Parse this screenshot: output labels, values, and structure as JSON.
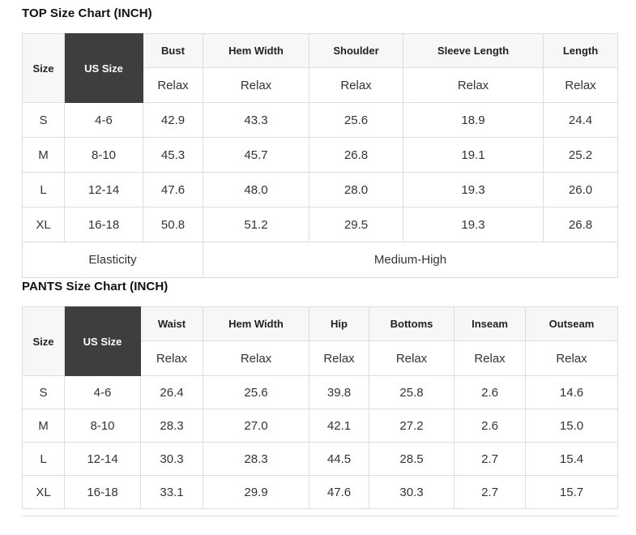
{
  "colors": {
    "dark_header_bg": "#3e3e3e",
    "dark_header_text": "#ffffff",
    "header_bg": "#f7f7f7",
    "border": "#dddddd",
    "text": "#333333",
    "heading_text": "#111111"
  },
  "top_chart": {
    "title": "TOP Size Chart (INCH)",
    "header": {
      "size": "Size",
      "us_size": "US Size",
      "columns": [
        "Bust",
        "Hem Width",
        "Shoulder",
        "Sleeve Length",
        "Length"
      ],
      "fit": "Relax"
    },
    "rows": [
      {
        "size": "S",
        "us_size": "4-6",
        "values": [
          "42.9",
          "43.3",
          "25.6",
          "18.9",
          "24.4"
        ]
      },
      {
        "size": "M",
        "us_size": "8-10",
        "values": [
          "45.3",
          "45.7",
          "26.8",
          "19.1",
          "25.2"
        ]
      },
      {
        "size": "L",
        "us_size": "12-14",
        "values": [
          "47.6",
          "48.0",
          "28.0",
          "19.3",
          "26.0"
        ]
      },
      {
        "size": "XL",
        "us_size": "16-18",
        "values": [
          "50.8",
          "51.2",
          "29.5",
          "19.3",
          "26.8"
        ]
      }
    ],
    "footer": {
      "label": "Elasticity",
      "value": "Medium-High"
    }
  },
  "pants_chart": {
    "title": "PANTS Size Chart (INCH)",
    "header": {
      "size": "Size",
      "us_size": "US Size",
      "columns": [
        "Waist",
        "Hem Width",
        "Hip",
        "Bottoms",
        "Inseam",
        "Outseam"
      ],
      "fit": "Relax"
    },
    "rows": [
      {
        "size": "S",
        "us_size": "4-6",
        "values": [
          "26.4",
          "25.6",
          "39.8",
          "25.8",
          "2.6",
          "14.6"
        ]
      },
      {
        "size": "M",
        "us_size": "8-10",
        "values": [
          "28.3",
          "27.0",
          "42.1",
          "27.2",
          "2.6",
          "15.0"
        ]
      },
      {
        "size": "L",
        "us_size": "12-14",
        "values": [
          "30.3",
          "28.3",
          "44.5",
          "28.5",
          "2.7",
          "15.4"
        ]
      },
      {
        "size": "XL",
        "us_size": "16-18",
        "values": [
          "33.1",
          "29.9",
          "47.6",
          "30.3",
          "2.7",
          "15.7"
        ]
      }
    ]
  }
}
